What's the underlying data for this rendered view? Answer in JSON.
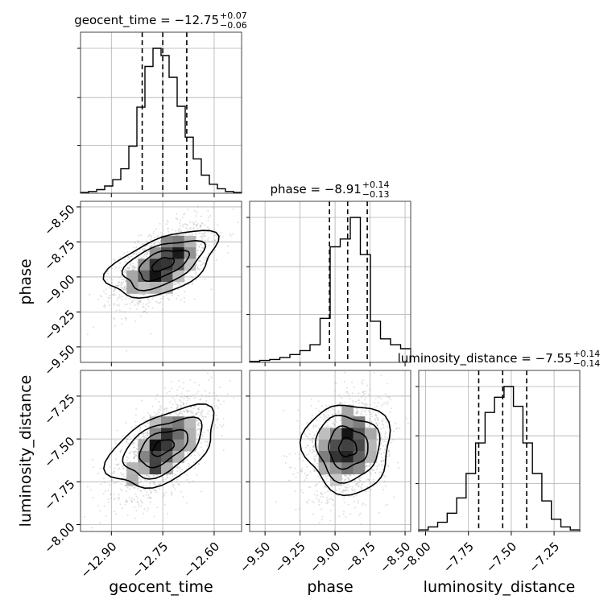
{
  "chart_data": {
    "type": "corner",
    "parameters": [
      "geocent_time",
      "phase",
      "luminosity_distance"
    ],
    "titles": [
      {
        "param": "geocent_time",
        "prefix": "geocent_time = ",
        "median": "−12.75",
        "plus": "+0.07",
        "minus": "−0.06"
      },
      {
        "param": "phase",
        "prefix": "phase = ",
        "median": "−8.91",
        "plus": "+0.14",
        "minus": "−0.13"
      },
      {
        "param": "luminosity_distance",
        "prefix": "luminosity_distance = ",
        "median": "−7.55",
        "plus": "+0.14",
        "minus": "−0.14"
      }
    ],
    "axes": [
      {
        "param": "geocent_time",
        "range": [
          -12.99,
          -12.52
        ],
        "ticks": [
          -12.9,
          -12.75,
          -12.6
        ],
        "tick_labels": [
          "−12.90",
          "−12.75",
          "−12.60"
        ]
      },
      {
        "param": "phase",
        "range": [
          -9.61,
          -8.46
        ],
        "ticks": [
          -9.5,
          -9.25,
          -9.0,
          -8.75,
          -8.5
        ],
        "tick_labels": [
          "−9.50",
          "−9.25",
          "−9.00",
          "−8.75",
          "−8.50"
        ]
      },
      {
        "param": "luminosity_distance",
        "range": [
          -8.04,
          -7.1
        ],
        "ticks": [
          -8.0,
          -7.75,
          -7.5,
          -7.25
        ],
        "tick_labels": [
          "−8.00",
          "−7.75",
          "−7.50",
          "−7.25"
        ]
      }
    ],
    "quantiles": [
      [
        -12.81,
        -12.75,
        -12.68
      ],
      [
        -9.04,
        -8.91,
        -8.77
      ],
      [
        -7.69,
        -7.55,
        -7.41
      ]
    ],
    "histograms": [
      {
        "param": "geocent_time",
        "counts": [
          1,
          2,
          4,
          8,
          15,
          27,
          52,
          95,
          140,
          160,
          152,
          128,
          96,
          62,
          38,
          20,
          10,
          5,
          2,
          1
        ]
      },
      {
        "param": "phase",
        "counts": [
          1,
          2,
          3,
          5,
          8,
          12,
          18,
          45,
          118,
          126,
          148,
          110,
          42,
          24,
          18,
          14
        ]
      },
      {
        "param": "luminosity_distance",
        "counts": [
          1,
          3,
          6,
          12,
          22,
          38,
          58,
          78,
          88,
          95,
          82,
          58,
          38,
          20,
          8,
          3,
          1
        ]
      }
    ],
    "correlations": [
      {
        "x": "geocent_time",
        "y": "phase",
        "rho": 0.55
      },
      {
        "x": "geocent_time",
        "y": "luminosity_distance",
        "rho": 0.6
      },
      {
        "x": "phase",
        "y": "luminosity_distance",
        "rho": 0.2
      }
    ],
    "grid": true
  },
  "colors": {
    "line": "#000000",
    "grid": "#b0b0b0",
    "scatter": "#8c8c8c"
  }
}
